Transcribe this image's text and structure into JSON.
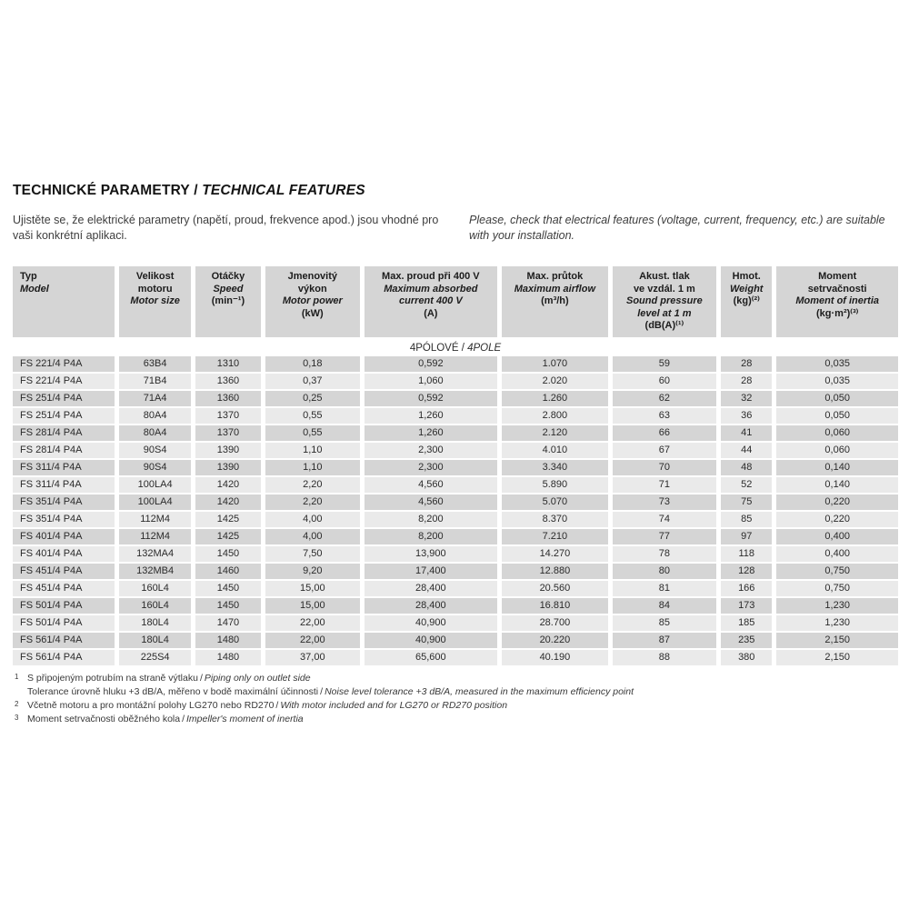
{
  "header": {
    "title_cs": "TECHNICKÉ PARAMETRY /",
    "title_en": "TECHNICAL FEATURES",
    "intro_cs": "Ujistěte se, že elektrické parametry (napětí, proud, frekvence apod.) jsou vhodné pro vaši konkrétní aplikaci.",
    "intro_en": "Please, check that electrical features (voltage, current, frequency, etc.) are suitable with your installation."
  },
  "separator": "/",
  "colors": {
    "header_cell": "#d5d5d5",
    "row_dark": "#d5d5d5",
    "row_light": "#eaeaea",
    "background": "#ffffff"
  },
  "table": {
    "section_cs": "4PÓLOVÉ /",
    "section_en": "4POLE",
    "columns": [
      {
        "key": "model",
        "cs": "Typ",
        "en": "Model"
      },
      {
        "key": "motor-size",
        "cs": "Velikost\nmotoru",
        "en": "Motor size"
      },
      {
        "key": "speed",
        "cs": "Otáčky",
        "en": "Speed",
        "unit": "(min⁻¹)"
      },
      {
        "key": "motor-power",
        "cs": "Jmenovitý\nvýkon",
        "en": "Motor power",
        "unit": "(kW)"
      },
      {
        "key": "max-current",
        "cs": "Max. proud při 400 V",
        "en": "Maximum absorbed\ncurrent 400 V",
        "unit": "(A)"
      },
      {
        "key": "max-airflow",
        "cs": "Max. průtok",
        "en": "Maximum airflow",
        "unit": "(m³/h)"
      },
      {
        "key": "sound-pressure",
        "cs": "Akust. tlak\nve vzdál. 1 m",
        "en": "Sound pressure\nlevel at 1 m",
        "unit": "(dB(A)⁽¹⁾"
      },
      {
        "key": "weight",
        "cs": "Hmot.",
        "en": "Weight",
        "unit": "(kg)⁽²⁾"
      },
      {
        "key": "inertia",
        "cs": "Moment\nsetrvačnosti",
        "en": "Moment of inertia",
        "unit": "(kg·m²)⁽³⁾"
      }
    ],
    "rows": [
      [
        "FS 221/4 P4A",
        "63B4",
        "1310",
        "0,18",
        "0,592",
        "1.070",
        "59",
        "28",
        "0,035"
      ],
      [
        "FS 221/4 P4A",
        "71B4",
        "1360",
        "0,37",
        "1,060",
        "2.020",
        "60",
        "28",
        "0,035"
      ],
      [
        "FS 251/4 P4A",
        "71A4",
        "1360",
        "0,25",
        "0,592",
        "1.260",
        "62",
        "32",
        "0,050"
      ],
      [
        "FS 251/4 P4A",
        "80A4",
        "1370",
        "0,55",
        "1,260",
        "2.800",
        "63",
        "36",
        "0,050"
      ],
      [
        "FS 281/4 P4A",
        "80A4",
        "1370",
        "0,55",
        "1,260",
        "2.120",
        "66",
        "41",
        "0,060"
      ],
      [
        "FS 281/4 P4A",
        "90S4",
        "1390",
        "1,10",
        "2,300",
        "4.010",
        "67",
        "44",
        "0,060"
      ],
      [
        "FS 311/4 P4A",
        "90S4",
        "1390",
        "1,10",
        "2,300",
        "3.340",
        "70",
        "48",
        "0,140"
      ],
      [
        "FS 311/4 P4A",
        "100LA4",
        "1420",
        "2,20",
        "4,560",
        "5.890",
        "71",
        "52",
        "0,140"
      ],
      [
        "FS 351/4 P4A",
        "100LA4",
        "1420",
        "2,20",
        "4,560",
        "5.070",
        "73",
        "75",
        "0,220"
      ],
      [
        "FS 351/4 P4A",
        "112M4",
        "1425",
        "4,00",
        "8,200",
        "8.370",
        "74",
        "85",
        "0,220"
      ],
      [
        "FS 401/4 P4A",
        "112M4",
        "1425",
        "4,00",
        "8,200",
        "7.210",
        "77",
        "97",
        "0,400"
      ],
      [
        "FS 401/4 P4A",
        "132MA4",
        "1450",
        "7,50",
        "13,900",
        "14.270",
        "78",
        "118",
        "0,400"
      ],
      [
        "FS 451/4 P4A",
        "132MB4",
        "1460",
        "9,20",
        "17,400",
        "12.880",
        "80",
        "128",
        "0,750"
      ],
      [
        "FS 451/4 P4A",
        "160L4",
        "1450",
        "15,00",
        "28,400",
        "20.560",
        "81",
        "166",
        "0,750"
      ],
      [
        "FS 501/4 P4A",
        "160L4",
        "1450",
        "15,00",
        "28,400",
        "16.810",
        "84",
        "173",
        "1,230"
      ],
      [
        "FS 501/4 P4A",
        "180L4",
        "1470",
        "22,00",
        "40,900",
        "28.700",
        "85",
        "185",
        "1,230"
      ],
      [
        "FS 561/4 P4A",
        "180L4",
        "1480",
        "22,00",
        "40,900",
        "20.220",
        "87",
        "235",
        "2,150"
      ],
      [
        "FS 561/4 P4A",
        "225S4",
        "1480",
        "37,00",
        "65,600",
        "40.190",
        "88",
        "380",
        "2,150"
      ]
    ]
  },
  "footnotes": [
    {
      "marker": "1",
      "cs": "S připojeným potrubím na straně výtlaku",
      "en": "Piping only on outlet side"
    },
    {
      "marker": "",
      "cs": "Tolerance úrovně hluku +3 dB/A, měřeno v bodě maximální účinnosti",
      "en": "Noise level tolerance +3 dB/A, measured in the maximum efficiency point"
    },
    {
      "marker": "2",
      "cs": "Včetně motoru a pro montážní polohy LG270 nebo RD270",
      "en": "With motor included and for LG270 or RD270 position"
    },
    {
      "marker": "3",
      "cs": "Moment setrvačnosti oběžného kola",
      "en": "Impeller's moment of inertia"
    }
  ]
}
